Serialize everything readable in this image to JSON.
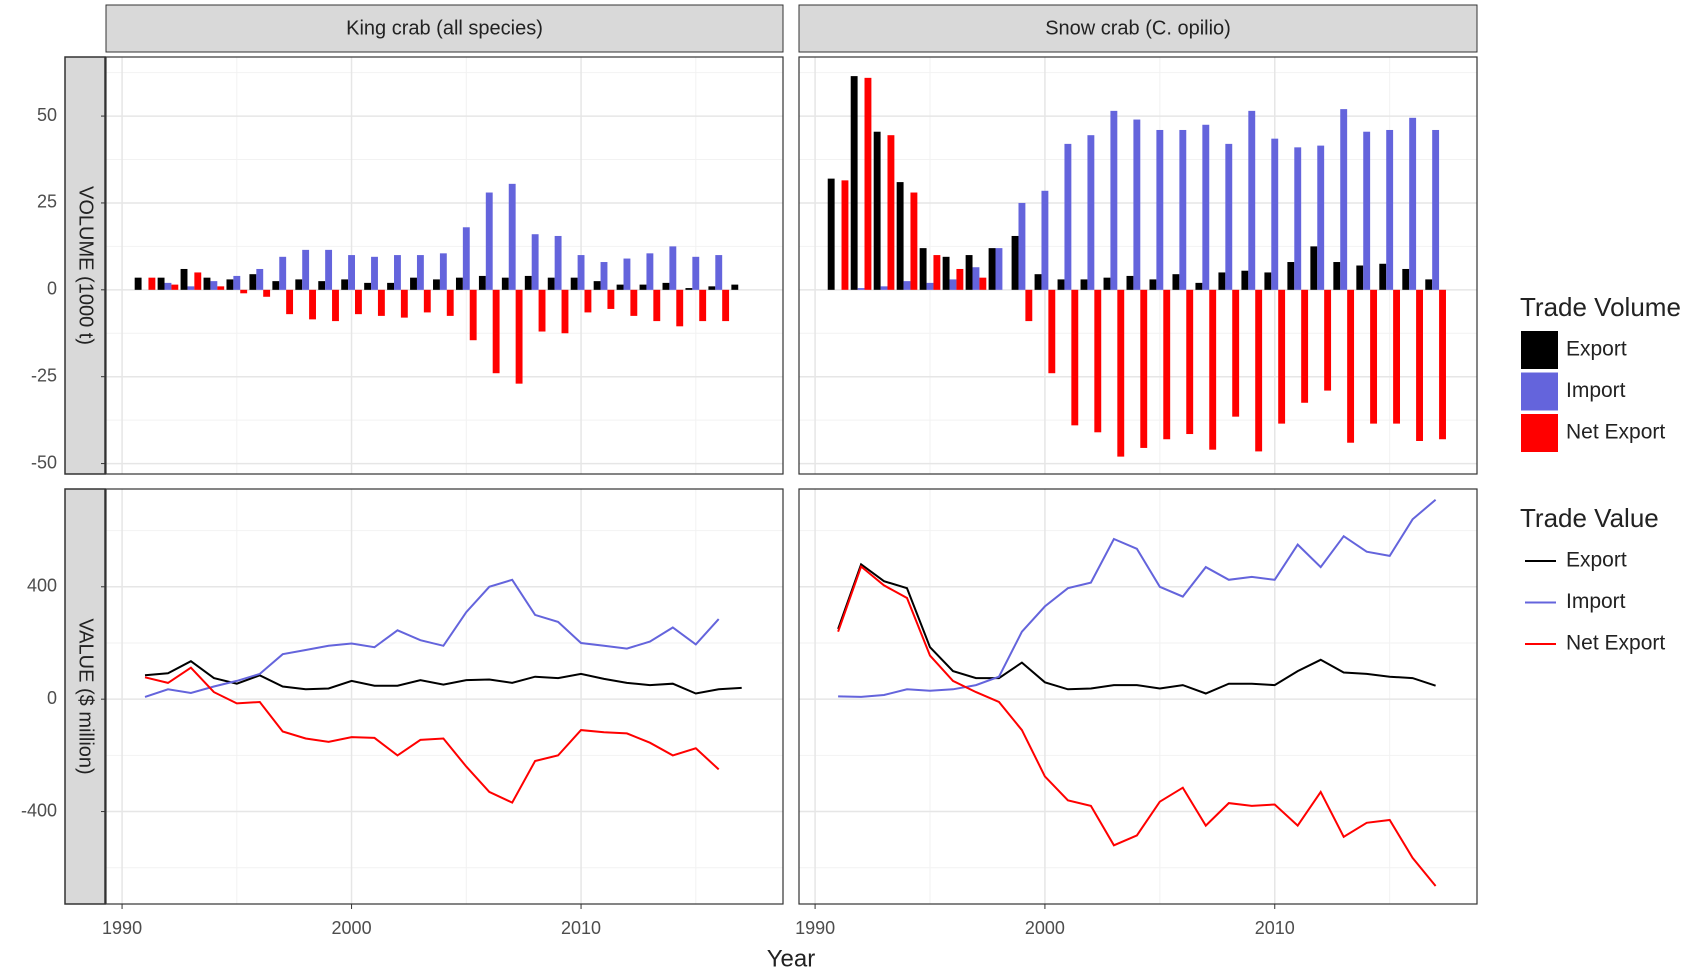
{
  "chart_data": {
    "type": "facet",
    "x_label": "Year",
    "x": [
      1991,
      1992,
      1993,
      1994,
      1995,
      1996,
      1997,
      1998,
      1999,
      2000,
      2001,
      2002,
      2003,
      2004,
      2005,
      2006,
      2007,
      2008,
      2009,
      2010,
      2011,
      2012,
      2013,
      2014,
      2015,
      2016,
      2017
    ],
    "xlim": [
      1989.3,
      2018.8
    ],
    "xticks": [
      1990,
      2000,
      2010
    ],
    "columns": [
      "King crab (all species)",
      "Snow crab (C. opilio)"
    ],
    "rows": [
      {
        "type": "bar",
        "label": "VOLUME (1000 t)",
        "ylim": [
          -53,
          67
        ],
        "yticks": [
          -50,
          -25,
          0,
          25,
          50
        ],
        "legend": {
          "title": "Trade Volume",
          "entries": [
            {
              "name": "Export",
              "color": "#000000"
            },
            {
              "name": "Import",
              "color": "#6464dc"
            },
            {
              "name": "Net Export",
              "color": "#ff0000"
            }
          ]
        },
        "panels": [
          {
            "series": [
              {
                "values": [
                  3.5,
                  3.5,
                  6,
                  3.5,
                  3,
                  4.5,
                  2.5,
                  3,
                  2.5,
                  3,
                  2,
                  2,
                  3.5,
                  3,
                  3.5,
                  4,
                  3.5,
                  4,
                  3.5,
                  3.5,
                  2.5,
                  1.5,
                  1.5,
                  2,
                  0.5,
                  1,
                  1.5
                ]
              },
              {
                "values": [
                  0,
                  2,
                  1,
                  2.5,
                  4,
                  6,
                  9.5,
                  11.5,
                  11.5,
                  10,
                  9.5,
                  10,
                  10,
                  10.5,
                  18,
                  28,
                  30.5,
                  16,
                  15.5,
                  10,
                  8,
                  9,
                  10.5,
                  12.5,
                  9.5,
                  10,
                  null
                ]
              },
              {
                "values": [
                  3.5,
                  1.5,
                  5,
                  1,
                  -1,
                  -2,
                  -7,
                  -8.5,
                  -9,
                  -7,
                  -7.5,
                  -8,
                  -6.5,
                  -7.5,
                  -14.5,
                  -24,
                  -27,
                  -12,
                  -12.5,
                  -6.5,
                  -5.5,
                  -7.5,
                  -9,
                  -10.5,
                  -9,
                  -9,
                  null
                ]
              }
            ]
          },
          {
            "series": [
              {
                "values": [
                  32,
                  61.5,
                  45.5,
                  31,
                  12,
                  9.5,
                  10,
                  12,
                  15.5,
                  4.5,
                  3,
                  3,
                  3.5,
                  4,
                  3,
                  4.5,
                  2,
                  5,
                  5.5,
                  5,
                  8,
                  12.5,
                  8,
                  7,
                  7.5,
                  6,
                  3
                ]
              },
              {
                "values": [
                  0,
                  0.5,
                  1,
                  2.5,
                  2,
                  3,
                  6.5,
                  12,
                  25,
                  28.5,
                  42,
                  44.5,
                  51.5,
                  49,
                  46,
                  46,
                  47.5,
                  42,
                  51.5,
                  43.5,
                  41,
                  41.5,
                  52,
                  45.5,
                  46,
                  49.5,
                  46
                ]
              },
              {
                "values": [
                  31.5,
                  61,
                  44.5,
                  28,
                  10,
                  6,
                  3.5,
                  0,
                  -9,
                  -24,
                  -39,
                  -41,
                  -48,
                  -45.5,
                  -43,
                  -41.5,
                  -46,
                  -36.5,
                  -46.5,
                  -38.5,
                  -32.5,
                  -29,
                  -44,
                  -38.5,
                  -38.5,
                  -43.5,
                  -43
                ]
              }
            ]
          }
        ]
      },
      {
        "type": "line",
        "label": "VALUE ($ million)",
        "ylim": [
          -729,
          748
        ],
        "yticks": [
          -400,
          0,
          400
        ],
        "legend": {
          "title": "Trade Value",
          "entries": [
            {
              "name": "Export",
              "color": "#000000"
            },
            {
              "name": "Import",
              "color": "#6464dc"
            },
            {
              "name": "Net Export",
              "color": "#ff0000"
            }
          ]
        },
        "panels": [
          {
            "series": [
              {
                "values": [
                  85,
                  92,
                  135,
                  75,
                  55,
                  85,
                  45,
                  35,
                  38,
                  65,
                  48,
                  48,
                  68,
                  52,
                  68,
                  70,
                  58,
                  80,
                  75,
                  90,
                  72,
                  58,
                  50,
                  55,
                  20,
                  35,
                  40
                ]
              },
              {
                "values": [
                  8,
                  35,
                  22,
                  45,
                  65,
                  90,
                  160,
                  175,
                  190,
                  198,
                  185,
                  245,
                  210,
                  190,
                  310,
                  400,
                  425,
                  300,
                  275,
                  200,
                  190,
                  180,
                  205,
                  255,
                  195,
                  285,
                  null
                ]
              },
              {
                "values": [
                  78,
                  58,
                  112,
                  25,
                  -15,
                  -10,
                  -115,
                  -140,
                  -152,
                  -135,
                  -138,
                  -200,
                  -145,
                  -140,
                  -240,
                  -330,
                  -368,
                  -220,
                  -200,
                  -110,
                  -118,
                  -122,
                  -155,
                  -200,
                  -175,
                  -250,
                  null
                ]
              }
            ]
          },
          {
            "series": [
              {
                "values": [
                  250,
                  480,
                  420,
                  395,
                  185,
                  100,
                  75,
                  75,
                  130,
                  60,
                  35,
                  38,
                  50,
                  50,
                  38,
                  50,
                  20,
                  55,
                  55,
                  50,
                  100,
                  140,
                  95,
                  90,
                  80,
                  75,
                  48
                ]
              },
              {
                "values": [
                  10,
                  8,
                  15,
                  35,
                  30,
                  35,
                  50,
                  80,
                  240,
                  330,
                  395,
                  415,
                  570,
                  535,
                  400,
                  365,
                  470,
                  425,
                  435,
                  425,
                  550,
                  470,
                  580,
                  525,
                  510,
                  640,
                  710
                ]
              },
              {
                "values": [
                  240,
                  472,
                  405,
                  360,
                  155,
                  65,
                  25,
                  -10,
                  -110,
                  -275,
                  -360,
                  -380,
                  -520,
                  -485,
                  -365,
                  -315,
                  -450,
                  -370,
                  -380,
                  -375,
                  -450,
                  -330,
                  -490,
                  -440,
                  -430,
                  -565,
                  -665
                ]
              }
            ]
          }
        ]
      }
    ]
  }
}
